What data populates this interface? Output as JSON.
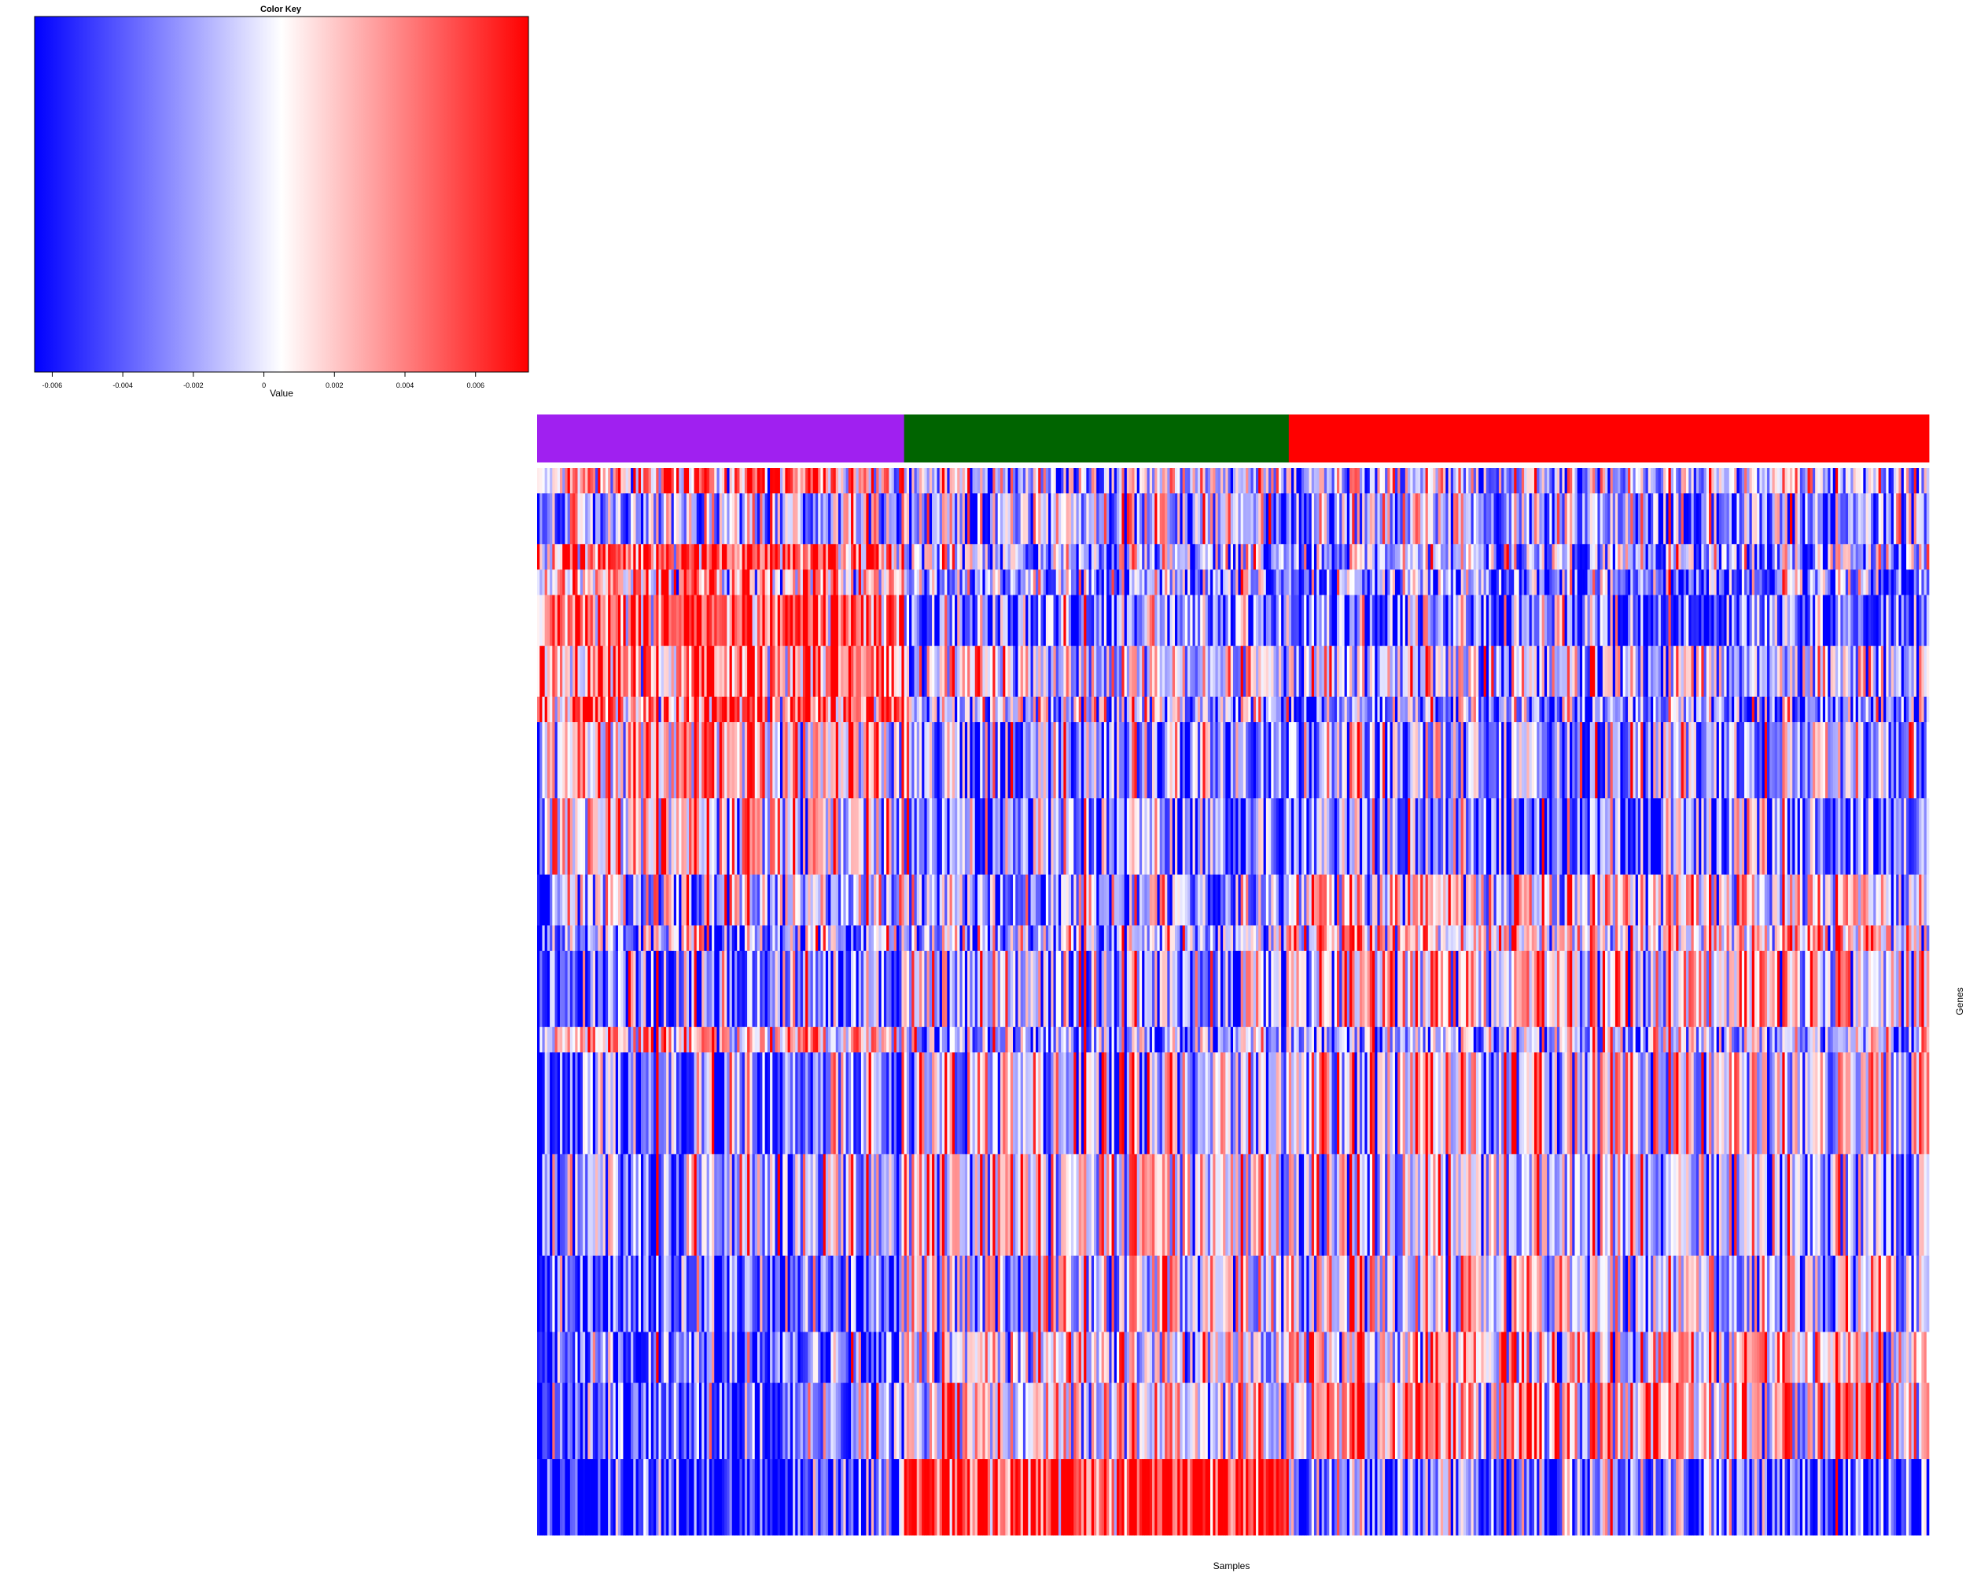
{
  "chart_data": {
    "type": "heatmap",
    "title": "",
    "xlabel": "Samples",
    "ylabel": "Genes",
    "color_key": {
      "title": "Color Key",
      "label": "Value",
      "range": [
        -0.0065,
        0.0075
      ],
      "ticks": [
        -0.006,
        -0.004,
        -0.002,
        0,
        0.002,
        0.004,
        0.006
      ],
      "tick_labels": [
        "-0.006",
        "-0.004",
        "-0.002",
        "0",
        "0.002",
        "0.004",
        "0.006"
      ],
      "low_color": "#0000ff",
      "mid_color": "#ffffff",
      "high_color": "#ff0000",
      "midpoint": 0.0005
    },
    "column_groups": [
      {
        "color": "#a020f0",
        "n_samples": 145
      },
      {
        "color": "#006400",
        "n_samples": 152
      },
      {
        "color": "#ff0000",
        "n_samples": 253
      }
    ],
    "n_samples": 550,
    "rows": [
      {
        "means": [
          0.0035,
          -0.0005,
          -0.001
        ],
        "height": 1
      },
      {
        "means": [
          -0.001,
          -0.0015,
          -0.002
        ],
        "height": 2
      },
      {
        "means": [
          0.005,
          -0.0015,
          -0.002
        ],
        "height": 1
      },
      {
        "means": [
          0.002,
          -0.002,
          -0.0035
        ],
        "height": 1
      },
      {
        "means": [
          0.0055,
          -0.0025,
          -0.004
        ],
        "height": 2
      },
      {
        "means": [
          0.004,
          0.0,
          -0.001
        ],
        "height": 2
      },
      {
        "means": [
          0.005,
          -0.001,
          -0.003
        ],
        "height": 1
      },
      {
        "means": [
          0.002,
          -0.002,
          -0.002
        ],
        "height": 3
      },
      {
        "means": [
          0.001,
          -0.0025,
          -0.0035
        ],
        "height": 3
      },
      {
        "means": [
          -0.0015,
          -0.0015,
          0.001
        ],
        "height": 2
      },
      {
        "means": [
          -0.002,
          -0.0015,
          0.0015
        ],
        "height": 1
      },
      {
        "means": [
          -0.003,
          -0.001,
          0.0015
        ],
        "height": 3
      },
      {
        "means": [
          0.002,
          -0.0015,
          -0.0015
        ],
        "height": 1
      },
      {
        "means": [
          -0.003,
          -0.0005,
          0.0005
        ],
        "height": 4
      },
      {
        "means": [
          -0.002,
          0.001,
          -0.001
        ],
        "height": 4
      },
      {
        "means": [
          -0.004,
          0.0,
          0.0
        ],
        "height": 3
      },
      {
        "means": [
          -0.0045,
          0.0005,
          0.0015
        ],
        "height": 2
      },
      {
        "means": [
          -0.0035,
          0.001,
          0.0025
        ],
        "height": 3
      },
      {
        "means": [
          -0.006,
          0.0065,
          -0.0035
        ],
        "height": 3
      }
    ]
  }
}
